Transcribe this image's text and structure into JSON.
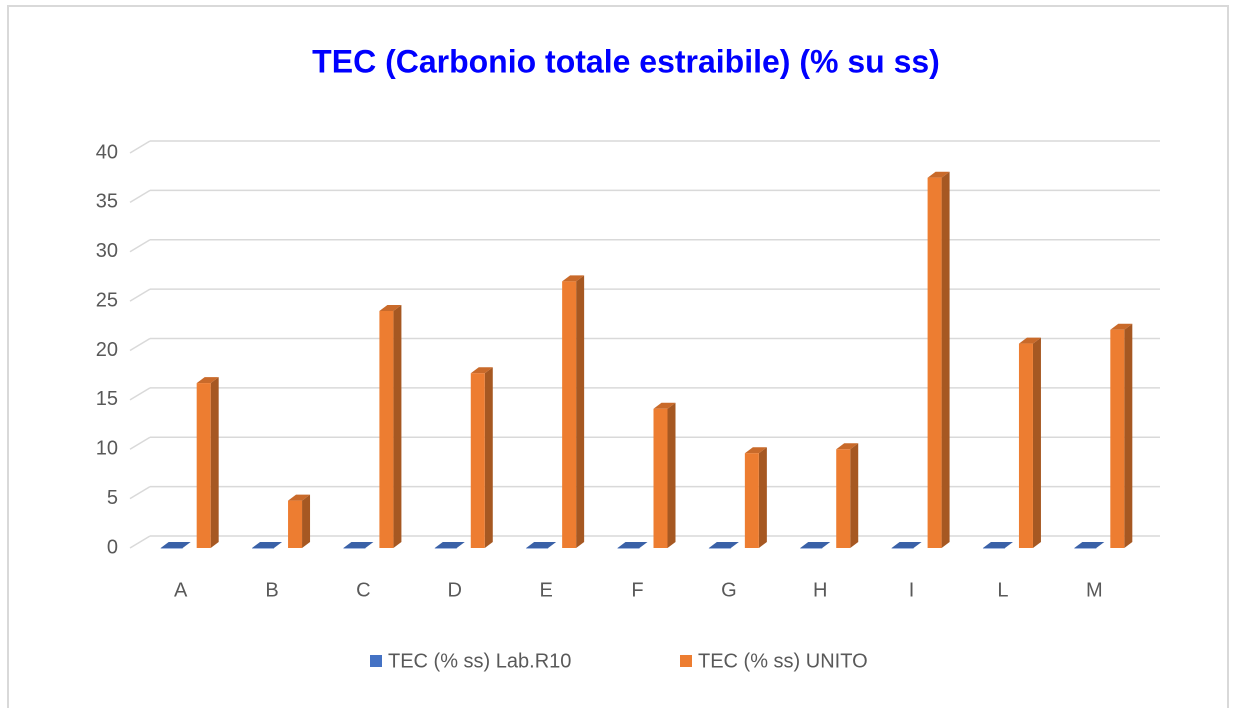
{
  "chart_data": {
    "type": "bar3d",
    "title": "TEC (Carbonio totale estraibile) (% su ss)",
    "categories": [
      "A",
      "B",
      "C",
      "D",
      "E",
      "F",
      "G",
      "H",
      "I",
      "L",
      "M"
    ],
    "series": [
      {
        "name": "TEC (% ss) Lab.R10",
        "color": "#4472c4",
        "values": [
          0,
          0,
          0,
          0,
          0,
          0,
          0,
          0,
          0,
          0,
          0
        ]
      },
      {
        "name": "TEC (% ss) UNITO",
        "color": "#ed7d31",
        "values": [
          16.7,
          4.8,
          24.0,
          17.7,
          27.0,
          14.1,
          9.6,
          10.0,
          37.5,
          20.7,
          22.1
        ]
      }
    ],
    "ylim": [
      0,
      40
    ],
    "yticks": [
      0,
      5,
      10,
      15,
      20,
      25,
      30,
      35,
      40
    ],
    "grid": true,
    "legend": "bottom"
  }
}
